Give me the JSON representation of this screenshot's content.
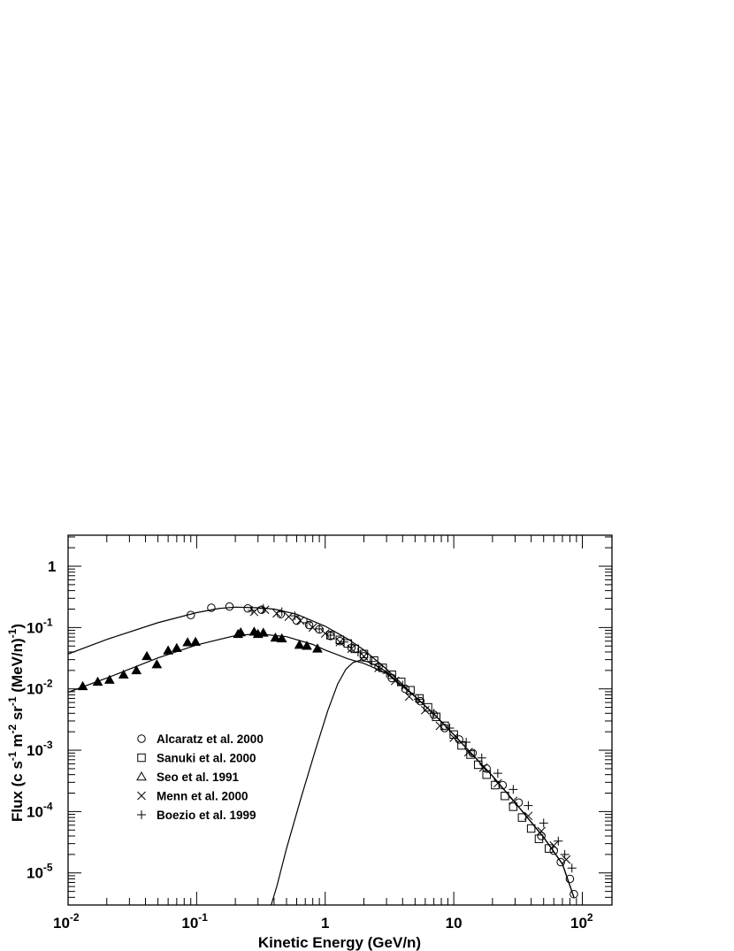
{
  "chart_data": {
    "type": "scatter",
    "xlabel": "Kinetic Energy (GeV/n)",
    "ylabel": {
      "parts": [
        "Flux (c s",
        "-1",
        " m",
        "-2",
        " sr",
        "-1",
        " (MeV/n)",
        "-1",
        ")"
      ]
    },
    "x_scale": "log",
    "y_scale": "log",
    "xlim": [
      0.01,
      170
    ],
    "ylim": [
      3e-06,
      3.2
    ],
    "grid": false,
    "legend_position": "bottom-left",
    "x_ticks": [
      {
        "value": 0.01,
        "base": "10",
        "exp": "-2"
      },
      {
        "value": 0.1,
        "base": "10",
        "exp": "-1"
      },
      {
        "value": 1,
        "base": "1",
        "exp": ""
      },
      {
        "value": 10,
        "base": "10",
        "exp": ""
      },
      {
        "value": 100,
        "base": "10",
        "exp": "2"
      }
    ],
    "y_ticks": [
      {
        "value": 1,
        "base": "1",
        "exp": ""
      },
      {
        "value": 0.1,
        "base": "10",
        "exp": "-1"
      },
      {
        "value": 0.01,
        "base": "10",
        "exp": "-2"
      },
      {
        "value": 0.001,
        "base": "10",
        "exp": "-3"
      },
      {
        "value": 0.0001,
        "base": "10",
        "exp": "-4"
      },
      {
        "value": 1e-05,
        "base": "10",
        "exp": "-5"
      }
    ],
    "series": [
      {
        "name": "Alcaratz et al. 2000",
        "marker": "circle",
        "points": [
          [
            0.09,
            0.16
          ],
          [
            0.13,
            0.21
          ],
          [
            0.18,
            0.22
          ],
          [
            0.25,
            0.205
          ],
          [
            0.32,
            0.195
          ],
          [
            0.45,
            0.165
          ],
          [
            0.6,
            0.13
          ],
          [
            0.75,
            0.11
          ],
          [
            0.9,
            0.093
          ],
          [
            1.1,
            0.073
          ],
          [
            1.3,
            0.06
          ],
          [
            1.6,
            0.047
          ],
          [
            2.0,
            0.034
          ],
          [
            2.6,
            0.023
          ],
          [
            3.3,
            0.015
          ],
          [
            4.2,
            0.01
          ],
          [
            5.5,
            0.0063
          ],
          [
            7.0,
            0.0038
          ],
          [
            8.5,
            0.0023
          ],
          [
            11,
            0.0015
          ],
          [
            14,
            0.0009
          ],
          [
            18,
            0.0005
          ],
          [
            24,
            0.00027
          ],
          [
            32,
            0.00014
          ],
          [
            48,
            4e-05
          ],
          [
            60,
            2.3e-05
          ],
          [
            68,
            1.5e-05
          ],
          [
            80,
            8e-06
          ],
          [
            86,
            4.5e-06
          ]
        ]
      },
      {
        "name": "Sanuki et al. 2000",
        "marker": "square",
        "points": [
          [
            1.1,
            0.075
          ],
          [
            1.3,
            0.063
          ],
          [
            1.5,
            0.055
          ],
          [
            1.7,
            0.045
          ],
          [
            2.0,
            0.037
          ],
          [
            2.4,
            0.029
          ],
          [
            2.8,
            0.022
          ],
          [
            3.3,
            0.017
          ],
          [
            3.9,
            0.013
          ],
          [
            4.6,
            0.0095
          ],
          [
            5.4,
            0.007
          ],
          [
            6.3,
            0.005
          ],
          [
            7.3,
            0.0035
          ],
          [
            8.5,
            0.0025
          ],
          [
            10,
            0.0018
          ],
          [
            11.5,
            0.0012
          ],
          [
            13.5,
            0.00085
          ],
          [
            15.5,
            0.00058
          ],
          [
            18,
            0.0004
          ],
          [
            21,
            0.00027
          ],
          [
            25,
            0.00018
          ],
          [
            29,
            0.00012
          ],
          [
            34,
            8e-05
          ],
          [
            40,
            5.3e-05
          ],
          [
            46,
            3.6e-05
          ],
          [
            55,
            2.5e-05
          ]
        ]
      },
      {
        "name": "Seo et al. 1991",
        "marker": "triangle",
        "filled": true,
        "points": [
          [
            0.013,
            0.011
          ],
          [
            0.017,
            0.013
          ],
          [
            0.021,
            0.014
          ],
          [
            0.027,
            0.017
          ],
          [
            0.034,
            0.02
          ],
          [
            0.041,
            0.034
          ],
          [
            0.049,
            0.025
          ],
          [
            0.06,
            0.042
          ],
          [
            0.07,
            0.046
          ],
          [
            0.085,
            0.057
          ],
          [
            0.098,
            0.058
          ],
          [
            0.21,
            0.078
          ],
          [
            0.22,
            0.083
          ],
          [
            0.28,
            0.085
          ],
          [
            0.3,
            0.078
          ],
          [
            0.33,
            0.082
          ],
          [
            0.41,
            0.068
          ],
          [
            0.46,
            0.066
          ],
          [
            0.63,
            0.052
          ],
          [
            0.72,
            0.05
          ],
          [
            0.87,
            0.045
          ]
        ]
      },
      {
        "name": "Menn et al. 2000",
        "marker": "cross",
        "points": [
          [
            0.28,
            0.18
          ],
          [
            0.34,
            0.195
          ],
          [
            0.42,
            0.17
          ],
          [
            0.52,
            0.15
          ],
          [
            0.64,
            0.13
          ],
          [
            0.8,
            0.1
          ],
          [
            1.0,
            0.08
          ],
          [
            1.3,
            0.058
          ],
          [
            1.6,
            0.045
          ],
          [
            2.0,
            0.034
          ],
          [
            2.6,
            0.022
          ],
          [
            3.5,
            0.0135
          ],
          [
            4.5,
            0.0075
          ],
          [
            6.0,
            0.0045
          ],
          [
            7.8,
            0.0025
          ],
          [
            10,
            0.0016
          ],
          [
            13,
            0.00093
          ],
          [
            17,
            0.00052
          ],
          [
            22,
            0.00029
          ],
          [
            29,
            0.00015
          ],
          [
            38,
            8.5e-05
          ],
          [
            48,
            4.8e-05
          ],
          [
            60,
            2.8e-05
          ],
          [
            75,
            1.65e-05
          ]
        ]
      },
      {
        "name": "Boezio et al. 1999",
        "marker": "plus",
        "points": [
          [
            0.27,
            0.19
          ],
          [
            0.33,
            0.205
          ],
          [
            0.46,
            0.18
          ],
          [
            0.58,
            0.155
          ],
          [
            0.72,
            0.12
          ],
          [
            0.9,
            0.095
          ],
          [
            1.1,
            0.075
          ],
          [
            1.4,
            0.058
          ],
          [
            1.8,
            0.04
          ],
          [
            2.3,
            0.028
          ],
          [
            3.0,
            0.018
          ],
          [
            4.0,
            0.0115
          ],
          [
            5.3,
            0.0068
          ],
          [
            7.0,
            0.004
          ],
          [
            9.3,
            0.0023
          ],
          [
            12.5,
            0.00135
          ],
          [
            16.5,
            0.00075
          ],
          [
            22,
            0.00042
          ],
          [
            29,
            0.00023
          ],
          [
            38,
            0.000125
          ],
          [
            50,
            6.5e-05
          ],
          [
            65,
            3.3e-05
          ],
          [
            73,
            2e-05
          ],
          [
            83,
            1.2e-05
          ]
        ]
      }
    ],
    "curves": [
      {
        "points": [
          [
            0.01,
            0.037
          ],
          [
            0.02,
            0.064
          ],
          [
            0.05,
            0.12
          ],
          [
            0.1,
            0.175
          ],
          [
            0.15,
            0.205
          ],
          [
            0.2,
            0.215
          ],
          [
            0.3,
            0.21
          ],
          [
            0.4,
            0.2
          ],
          [
            0.6,
            0.165
          ],
          [
            1.0,
            0.105
          ],
          [
            1.5,
            0.065
          ],
          [
            2.0,
            0.043
          ],
          [
            3.0,
            0.021
          ],
          [
            5.0,
            0.0075
          ],
          [
            7.0,
            0.0039
          ],
          [
            10,
            0.0018
          ],
          [
            20,
            0.00038
          ],
          [
            30,
            0.00014
          ],
          [
            50,
            3.8e-05
          ],
          [
            70,
            1.4e-05
          ],
          [
            86,
            4e-06
          ]
        ]
      },
      {
        "points": [
          [
            0.01,
            0.0088
          ],
          [
            0.02,
            0.015
          ],
          [
            0.05,
            0.032
          ],
          [
            0.1,
            0.052
          ],
          [
            0.2,
            0.074
          ],
          [
            0.3,
            0.079
          ],
          [
            0.5,
            0.071
          ],
          [
            0.8,
            0.053
          ],
          [
            1.0,
            0.043
          ],
          [
            1.5,
            0.031
          ],
          [
            2.0,
            0.026
          ],
          [
            3.0,
            0.018
          ],
          [
            5.0,
            0.0075
          ],
          [
            7.0,
            0.0039
          ],
          [
            10,
            0.0018
          ],
          [
            20,
            0.00038
          ],
          [
            30,
            0.00014
          ],
          [
            50,
            3.8e-05
          ],
          [
            70,
            1.4e-05
          ],
          [
            86,
            4e-06
          ]
        ]
      },
      {
        "points": [
          [
            0.38,
            3e-06
          ],
          [
            0.42,
            6e-06
          ],
          [
            0.5,
            2.5e-05
          ],
          [
            0.65,
            0.00017
          ],
          [
            0.85,
            0.0011
          ],
          [
            1.05,
            0.0045
          ],
          [
            1.25,
            0.012
          ],
          [
            1.45,
            0.021
          ],
          [
            1.65,
            0.027
          ],
          [
            1.85,
            0.029
          ],
          [
            2.1,
            0.028
          ],
          [
            2.5,
            0.024
          ],
          [
            3.0,
            0.019
          ],
          [
            4.0,
            0.011
          ],
          [
            5.0,
            0.0075
          ],
          [
            7.0,
            0.0039
          ],
          [
            10,
            0.0018
          ],
          [
            20,
            0.00038
          ],
          [
            30,
            0.00014
          ],
          [
            50,
            3.8e-05
          ],
          [
            70,
            1.4e-05
          ],
          [
            86,
            4e-06
          ]
        ]
      }
    ]
  }
}
